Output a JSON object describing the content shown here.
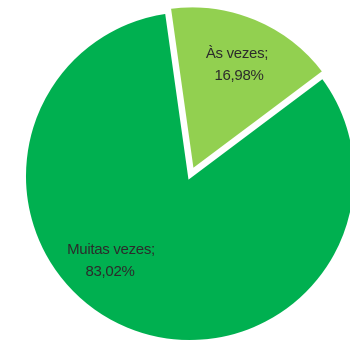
{
  "chart_data": {
    "type": "pie",
    "slices": [
      {
        "category": "Às vezes;",
        "value_label": "16,98%",
        "value": 16.98,
        "color": "#92d050"
      },
      {
        "category": "Muitas vezes;",
        "value_label": "83,02%",
        "value": 83.02,
        "color": "#00b050"
      }
    ],
    "start_angle_deg": -8,
    "direction": "clockwise",
    "legend": "none",
    "data_labels": "inside"
  }
}
